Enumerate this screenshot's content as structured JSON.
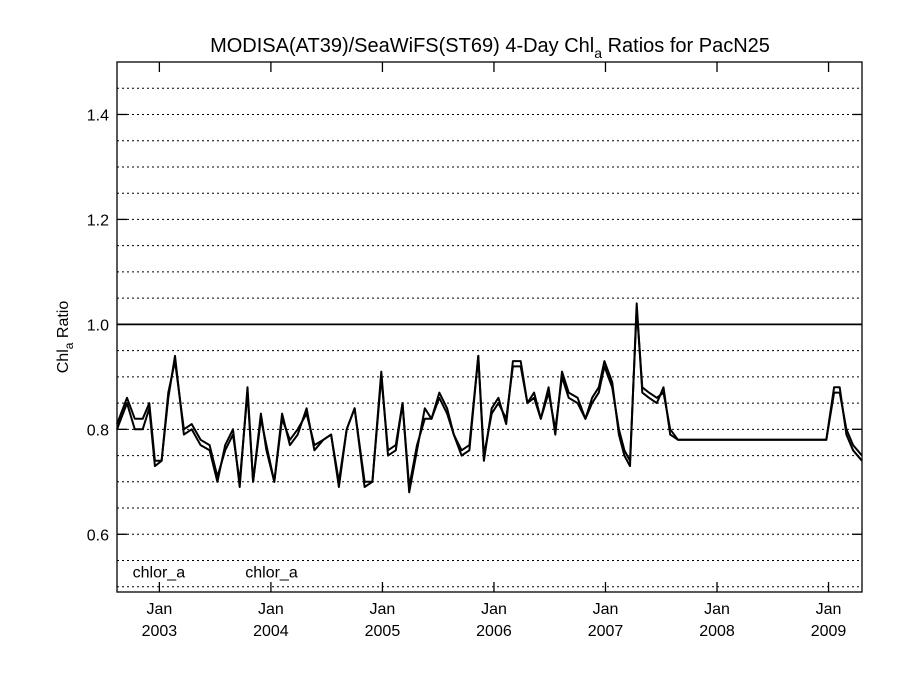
{
  "chart_data": {
    "type": "line",
    "title_main": "MODISA(AT39)/SeaWiFS(ST69) 4-Day Chl",
    "title_sub": "a",
    "title_tail": " Ratios for PacN25",
    "ylabel_main": "Chl",
    "ylabel_sub": "a",
    "ylabel_tail": " Ratio",
    "ylim": [
      0.49,
      1.5
    ],
    "xlim": [
      2002.62,
      2009.3
    ],
    "reference_line": 1.0,
    "yticks": [
      {
        "value": 0.6,
        "label": "0.6"
      },
      {
        "value": 0.8,
        "label": "0.8"
      },
      {
        "value": 1.0,
        "label": "1.0"
      },
      {
        "value": 1.2,
        "label": "1.2"
      },
      {
        "value": 1.4,
        "label": "1.4"
      }
    ],
    "grid_values": [
      0.5,
      0.55,
      0.6,
      0.65,
      0.7,
      0.75,
      0.8,
      0.85,
      0.9,
      0.95,
      1.05,
      1.1,
      1.15,
      1.2,
      1.25,
      1.3,
      1.35,
      1.4,
      1.45
    ],
    "xticks": [
      {
        "value": 2003.0,
        "month": "Jan",
        "year": "2003"
      },
      {
        "value": 2004.0,
        "month": "Jan",
        "year": "2004"
      },
      {
        "value": 2005.0,
        "month": "Jan",
        "year": "2005"
      },
      {
        "value": 2006.0,
        "month": "Jan",
        "year": "2006"
      },
      {
        "value": 2007.0,
        "month": "Jan",
        "year": "2007"
      },
      {
        "value": 2008.0,
        "month": "Jan",
        "year": "2008"
      },
      {
        "value": 2009.0,
        "month": "Jan",
        "year": "2009"
      }
    ],
    "annotations": [
      {
        "text": "chlor_a",
        "x": 2002.76,
        "y": 0.525
      },
      {
        "text": "chlor_a",
        "x": 2003.77,
        "y": 0.525
      }
    ],
    "series": [
      {
        "x": [
          2002.62,
          2002.71,
          2002.78,
          2002.85,
          2002.91,
          2002.96,
          2003.02,
          2003.08,
          2003.14,
          2003.22,
          2003.29,
          2003.37,
          2003.45,
          2003.52,
          2003.59,
          2003.66,
          2003.72,
          2003.79,
          2003.84,
          2003.91,
          2003.96,
          2004.03,
          2004.1,
          2004.17,
          2004.24,
          2004.32,
          2004.39,
          2004.47,
          2004.54,
          2004.61,
          2004.68,
          2004.75,
          2004.84,
          2004.91,
          2004.99,
          2005.05,
          2005.12,
          2005.18,
          2005.24,
          2005.31,
          2005.38,
          2005.44,
          2005.51,
          2005.58,
          2005.64,
          2005.71,
          2005.78,
          2005.86,
          2005.91,
          2005.98,
          2006.04,
          2006.11,
          2006.17,
          2006.24,
          2006.3,
          2006.36,
          2006.42,
          2006.49,
          2006.55,
          2006.61,
          2006.67,
          2006.75,
          2006.82,
          2006.88,
          2006.94,
          2006.99,
          2007.06,
          2007.12,
          2007.17,
          2007.22,
          2007.28,
          2007.33,
          2007.39,
          2007.46,
          2007.52,
          2007.58,
          2007.65,
          2007.72,
          2007.79,
          2007.86,
          2007.93,
          2008.04,
          2008.13,
          2008.22,
          2008.27,
          2008.31,
          2008.38,
          2008.63,
          2008.73,
          2008.79,
          2008.86,
          2008.92,
          2008.98,
          2009.05,
          2009.1,
          2009.16,
          2009.22,
          2009.3
        ],
        "values": [
          0.81,
          0.86,
          0.82,
          0.82,
          0.85,
          0.74,
          0.74,
          0.87,
          0.93,
          0.8,
          0.81,
          0.78,
          0.77,
          0.71,
          0.76,
          0.79,
          0.7,
          0.87,
          0.7,
          0.82,
          0.77,
          0.7,
          0.82,
          0.78,
          0.8,
          0.83,
          0.77,
          0.78,
          0.79,
          0.7,
          0.8,
          0.84,
          0.7,
          0.7,
          0.9,
          0.76,
          0.77,
          0.85,
          0.69,
          0.77,
          0.82,
          0.82,
          0.86,
          0.83,
          0.79,
          0.76,
          0.77,
          0.94,
          0.75,
          0.83,
          0.85,
          0.82,
          0.92,
          0.92,
          0.85,
          0.86,
          0.82,
          0.87,
          0.8,
          0.9,
          0.86,
          0.85,
          0.82,
          0.85,
          0.87,
          0.92,
          0.88,
          0.8,
          0.76,
          0.74,
          1.03,
          0.88,
          0.87,
          0.86,
          0.87,
          0.8,
          0.78,
          0.78,
          0.78,
          0.78,
          0.78,
          0.78,
          0.78,
          0.78,
          0.78,
          0.78,
          0.78,
          0.78,
          0.78,
          0.78,
          0.78,
          0.78,
          0.78,
          0.87,
          0.87,
          0.8,
          0.77,
          0.75
        ]
      },
      {
        "x": [
          2002.62,
          2002.71,
          2002.78,
          2002.85,
          2002.91,
          2002.96,
          2003.02,
          2003.08,
          2003.14,
          2003.22,
          2003.29,
          2003.37,
          2003.45,
          2003.52,
          2003.59,
          2003.66,
          2003.72,
          2003.79,
          2003.84,
          2003.91,
          2003.96,
          2004.03,
          2004.1,
          2004.17,
          2004.24,
          2004.32,
          2004.39,
          2004.47,
          2004.54,
          2004.61,
          2004.68,
          2004.75,
          2004.84,
          2004.91,
          2004.99,
          2005.05,
          2005.12,
          2005.18,
          2005.24,
          2005.31,
          2005.38,
          2005.44,
          2005.51,
          2005.58,
          2005.64,
          2005.71,
          2005.78,
          2005.86,
          2005.91,
          2005.98,
          2006.04,
          2006.11,
          2006.17,
          2006.24,
          2006.3,
          2006.36,
          2006.42,
          2006.49,
          2006.55,
          2006.61,
          2006.67,
          2006.75,
          2006.82,
          2006.88,
          2006.94,
          2006.99,
          2007.06,
          2007.12,
          2007.17,
          2007.22,
          2007.28,
          2007.33,
          2007.39,
          2007.46,
          2007.52,
          2007.58,
          2007.65,
          2007.72,
          2007.79,
          2007.86,
          2007.93,
          2008.04,
          2008.13,
          2008.22,
          2008.27,
          2008.31,
          2008.38,
          2008.63,
          2008.73,
          2008.79,
          2008.86,
          2008.92,
          2008.98,
          2009.05,
          2009.1,
          2009.16,
          2009.22,
          2009.3
        ],
        "values": [
          0.8,
          0.85,
          0.8,
          0.8,
          0.84,
          0.73,
          0.74,
          0.86,
          0.94,
          0.79,
          0.8,
          0.77,
          0.76,
          0.7,
          0.77,
          0.8,
          0.69,
          0.88,
          0.7,
          0.83,
          0.76,
          0.7,
          0.83,
          0.77,
          0.79,
          0.84,
          0.76,
          0.78,
          0.79,
          0.69,
          0.8,
          0.84,
          0.69,
          0.7,
          0.91,
          0.75,
          0.76,
          0.85,
          0.68,
          0.76,
          0.84,
          0.82,
          0.87,
          0.84,
          0.79,
          0.75,
          0.76,
          0.94,
          0.74,
          0.84,
          0.86,
          0.81,
          0.93,
          0.93,
          0.85,
          0.87,
          0.82,
          0.88,
          0.79,
          0.91,
          0.87,
          0.86,
          0.82,
          0.86,
          0.88,
          0.93,
          0.89,
          0.79,
          0.75,
          0.73,
          1.04,
          0.87,
          0.86,
          0.85,
          0.88,
          0.79,
          0.78,
          0.78,
          0.78,
          0.78,
          0.78,
          0.78,
          0.78,
          0.78,
          0.78,
          0.78,
          0.78,
          0.78,
          0.78,
          0.78,
          0.78,
          0.78,
          0.78,
          0.88,
          0.88,
          0.79,
          0.76,
          0.74
        ]
      }
    ]
  }
}
